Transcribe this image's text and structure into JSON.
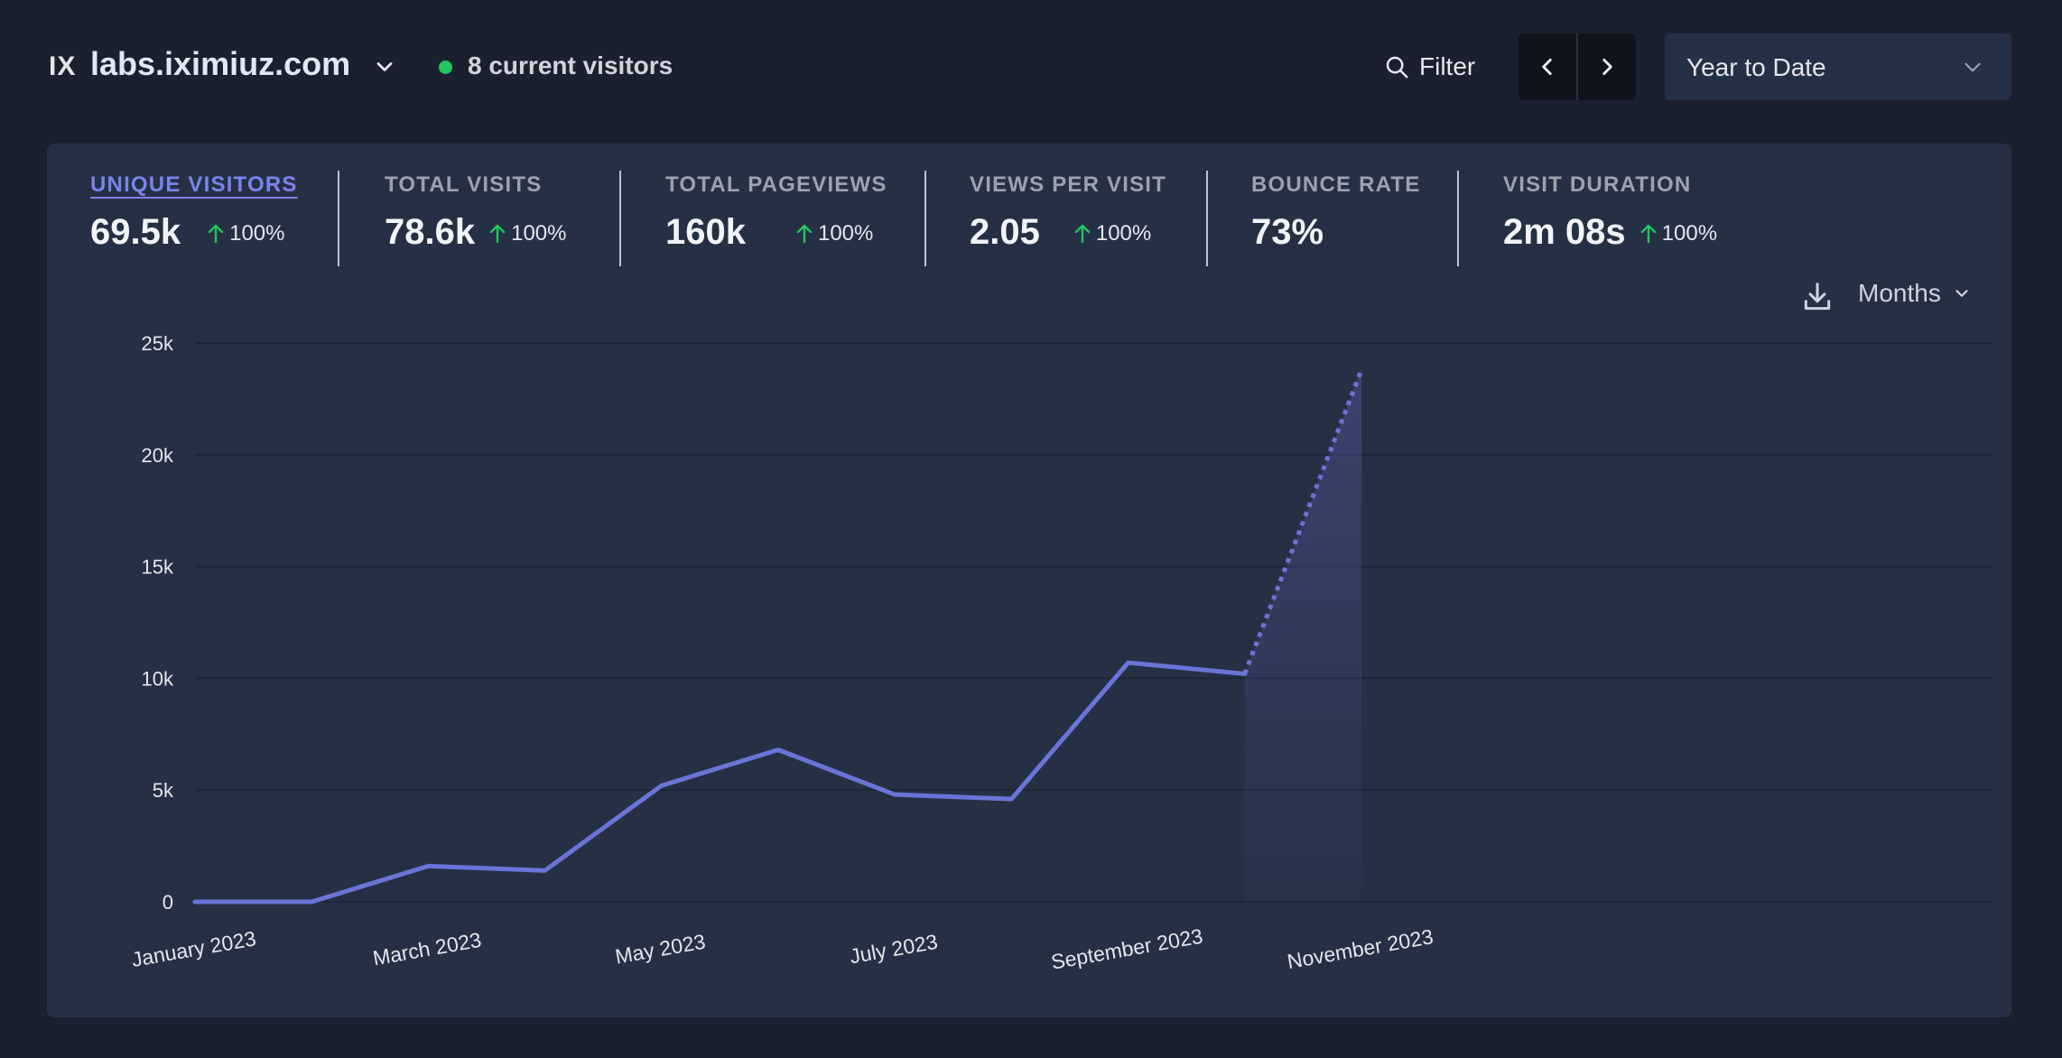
{
  "header": {
    "logo": "IX",
    "site_name": "labs.iximiuz.com",
    "current_visitors": "8 current visitors",
    "filter_label": "Filter",
    "period_label": "Year to Date",
    "colors": {
      "live": "#22c55e",
      "accent": "#6b74d6"
    }
  },
  "stats": [
    {
      "label": "UNIQUE VISITORS",
      "value": "69.5k",
      "change": "100%",
      "active": true
    },
    {
      "label": "TOTAL VISITS",
      "value": "78.6k",
      "change": "100%"
    },
    {
      "label": "TOTAL PAGEVIEWS",
      "value": "160k",
      "change": "100%"
    },
    {
      "label": "VIEWS PER VISIT",
      "value": "2.05",
      "change": "100%"
    },
    {
      "label": "BOUNCE RATE",
      "value": "73%",
      "change": null
    },
    {
      "label": "VISIT DURATION",
      "value": "2m 08s",
      "change": "100%"
    }
  ],
  "chart_controls": {
    "interval_label": "Months",
    "download_icon": "download-icon"
  },
  "chart_data": {
    "type": "line",
    "x": [
      "2023-01",
      "2023-02",
      "2023-03",
      "2023-04",
      "2023-05",
      "2023-06",
      "2023-07",
      "2023-08",
      "2023-09",
      "2023-10",
      "2023-11"
    ],
    "x_tick_labels": [
      "January 2023",
      "March 2023",
      "May 2023",
      "July 2023",
      "September 2023",
      "November 2023"
    ],
    "series": [
      {
        "values": [
          0,
          0,
          1600,
          1400,
          5200,
          6800,
          4800,
          4600,
          10700,
          10200,
          23800
        ],
        "last_point_partial": true
      }
    ],
    "ylim": [
      0,
      25000
    ],
    "y_tick_labels": [
      "0",
      "5k",
      "10k",
      "15k",
      "20k",
      "25k"
    ],
    "grid": true,
    "color": "#6b74d6"
  }
}
